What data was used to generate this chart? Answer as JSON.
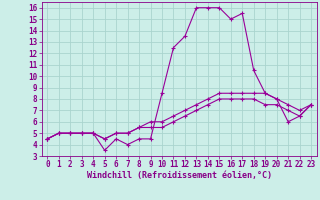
{
  "xlabel": "Windchill (Refroidissement éolien,°C)",
  "bg_color": "#cceee8",
  "grid_color": "#aad4ce",
  "line_color": "#990099",
  "x_values": [
    0,
    1,
    2,
    3,
    4,
    5,
    6,
    7,
    8,
    9,
    10,
    11,
    12,
    13,
    14,
    15,
    16,
    17,
    18,
    19,
    20,
    21,
    22,
    23
  ],
  "series1": [
    4.5,
    5.0,
    5.0,
    5.0,
    5.0,
    3.5,
    4.5,
    4.0,
    4.5,
    4.5,
    8.5,
    12.5,
    13.5,
    16.0,
    16.0,
    16.0,
    15.0,
    15.5,
    10.5,
    8.5,
    8.0,
    6.0,
    6.5,
    7.5
  ],
  "series2": [
    4.5,
    5.0,
    5.0,
    5.0,
    5.0,
    4.5,
    5.0,
    5.0,
    5.5,
    6.0,
    6.0,
    6.5,
    7.0,
    7.5,
    8.0,
    8.5,
    8.5,
    8.5,
    8.5,
    8.5,
    8.0,
    7.5,
    7.0,
    7.5
  ],
  "series3": [
    4.5,
    5.0,
    5.0,
    5.0,
    5.0,
    4.5,
    5.0,
    5.0,
    5.5,
    5.5,
    5.5,
    6.0,
    6.5,
    7.0,
    7.5,
    8.0,
    8.0,
    8.0,
    8.0,
    7.5,
    7.5,
    7.0,
    6.5,
    7.5
  ],
  "ylim": [
    3,
    16.5
  ],
  "xlim": [
    -0.5,
    23.5
  ],
  "yticks": [
    3,
    4,
    5,
    6,
    7,
    8,
    9,
    10,
    11,
    12,
    13,
    14,
    15,
    16
  ],
  "xticks": [
    0,
    1,
    2,
    3,
    4,
    5,
    6,
    7,
    8,
    9,
    10,
    11,
    12,
    13,
    14,
    15,
    16,
    17,
    18,
    19,
    20,
    21,
    22,
    23
  ],
  "tick_fontsize": 5.5,
  "xlabel_fontsize": 6.0,
  "tick_color": "#880088",
  "spine_color": "#880088"
}
